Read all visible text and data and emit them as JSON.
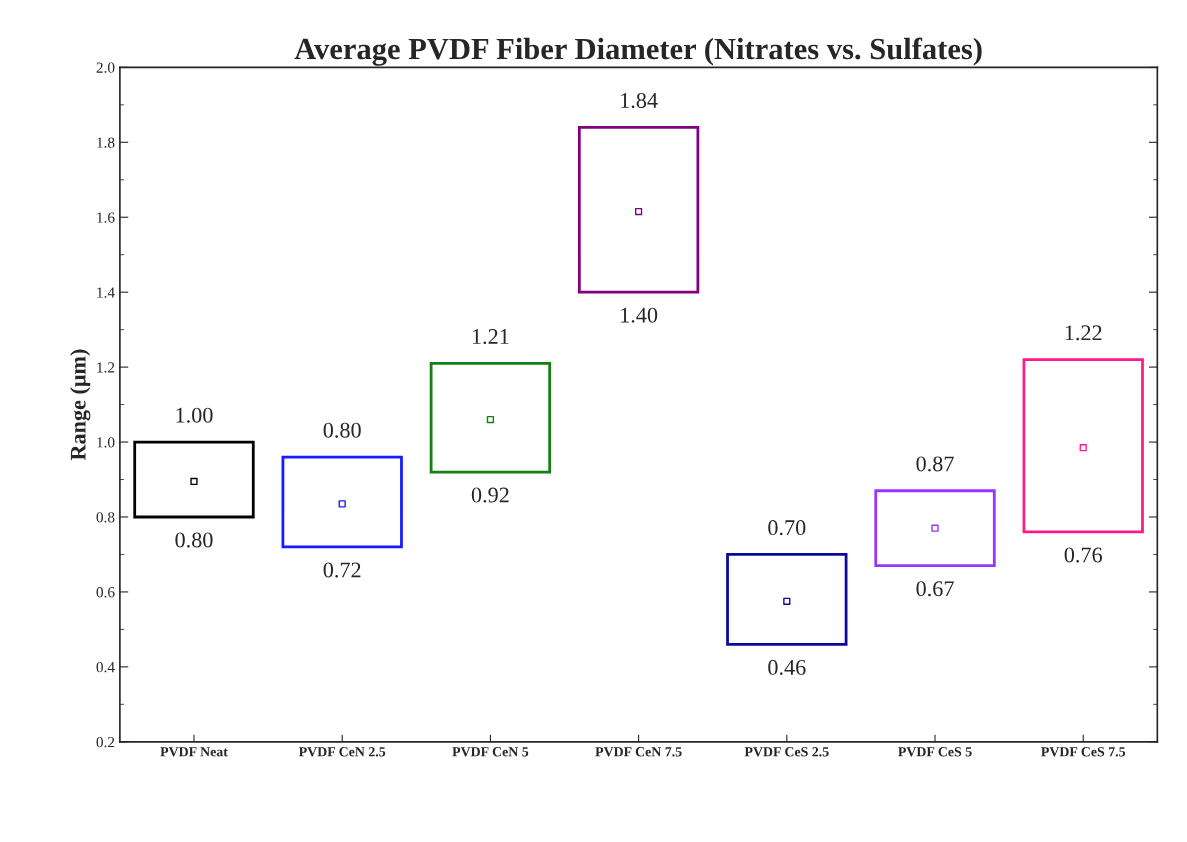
{
  "chart_data": {
    "type": "bar",
    "title": "Average PVDF Fiber Diameter (Nitrates vs. Sulfates)",
    "ylabel": "Range (μm)",
    "categories": [
      "PVDF Neat",
      "PVDF CeN 2.5",
      "PVDF CeN 5",
      "PVDF CeN 7.5",
      "PVDF CeS 2.5",
      "PVDF CeS 5",
      "PVDF CeS 7.5"
    ],
    "series": [
      {
        "values": [
          0.2,
          0.24,
          0.29,
          0.44,
          0.24,
          0.2,
          0.46
        ],
        "base": [
          0.8,
          0.72,
          0.92,
          1.4,
          0.46,
          0.67,
          0.76
        ],
        "colors": [
          "#000000",
          "#1a1aff",
          "#138013",
          "#800080",
          "#0a0a99",
          "#9933ff",
          "#ff1a8c"
        ]
      },
      {
        "type": "scatter",
        "x": [
          "PVDF Neat",
          "PVDF CeN 2.5",
          "PVDF CeN 5",
          "PVDF CeN 7.5",
          "PVDF CeS 2.5",
          "PVDF CeS 5",
          "PVDF CeS 7.5"
        ],
        "values": [
          0.895,
          0.835,
          1.06,
          1.615,
          0.575,
          0.77,
          0.985
        ],
        "colors": [
          "#000000",
          "#1a1aff",
          "#138013",
          "#800080",
          "#0a0a99",
          "#9933ff",
          "#ff1a8c"
        ],
        "marker": "square"
      }
    ],
    "annotations": [
      {
        "text": "1.00",
        "x": "PVDF Neat",
        "y": 1.0
      },
      {
        "text": "0.80",
        "x": "PVDF Neat",
        "y": 0.8
      },
      {
        "text": "0.80",
        "x": "PVDF CeN 2.5",
        "y": 0.96
      },
      {
        "text": "0.72",
        "x": "PVDF CeN 2.5",
        "y": 0.72
      },
      {
        "text": "1.21",
        "x": "PVDF CeN 5",
        "y": 1.21
      },
      {
        "text": "0.92",
        "x": "PVDF CeN 5",
        "y": 0.92
      },
      {
        "text": "1.84",
        "x": "PVDF CeN 7.5",
        "y": 1.84
      },
      {
        "text": "1.40",
        "x": "PVDF CeN 7.5",
        "y": 1.4
      },
      {
        "text": "0.70",
        "x": "PVDF CeS 2.5",
        "y": 0.7
      },
      {
        "text": "0.46",
        "x": "PVDF CeS 2.5",
        "y": 0.46
      },
      {
        "text": "0.87",
        "x": "PVDF CeS 5",
        "y": 0.87
      },
      {
        "text": "0.67",
        "x": "PVDF CeS 5",
        "y": 0.67
      },
      {
        "text": "1.22",
        "x": "PVDF CeS 7.5",
        "y": 1.22
      },
      {
        "text": "0.76",
        "x": "PVDF CeS 7.5",
        "y": 0.76
      }
    ],
    "ylim": [
      0.2,
      2.0
    ],
    "yticks": [
      0.2,
      0.4,
      0.6,
      0.8,
      {
        "value": 1,
        "label": "1.0"
      },
      1.2,
      1.4,
      1.6,
      1.8,
      {
        "value": 2,
        "label": "2.0"
      }
    ],
    "grid": false,
    "legend": false
  }
}
